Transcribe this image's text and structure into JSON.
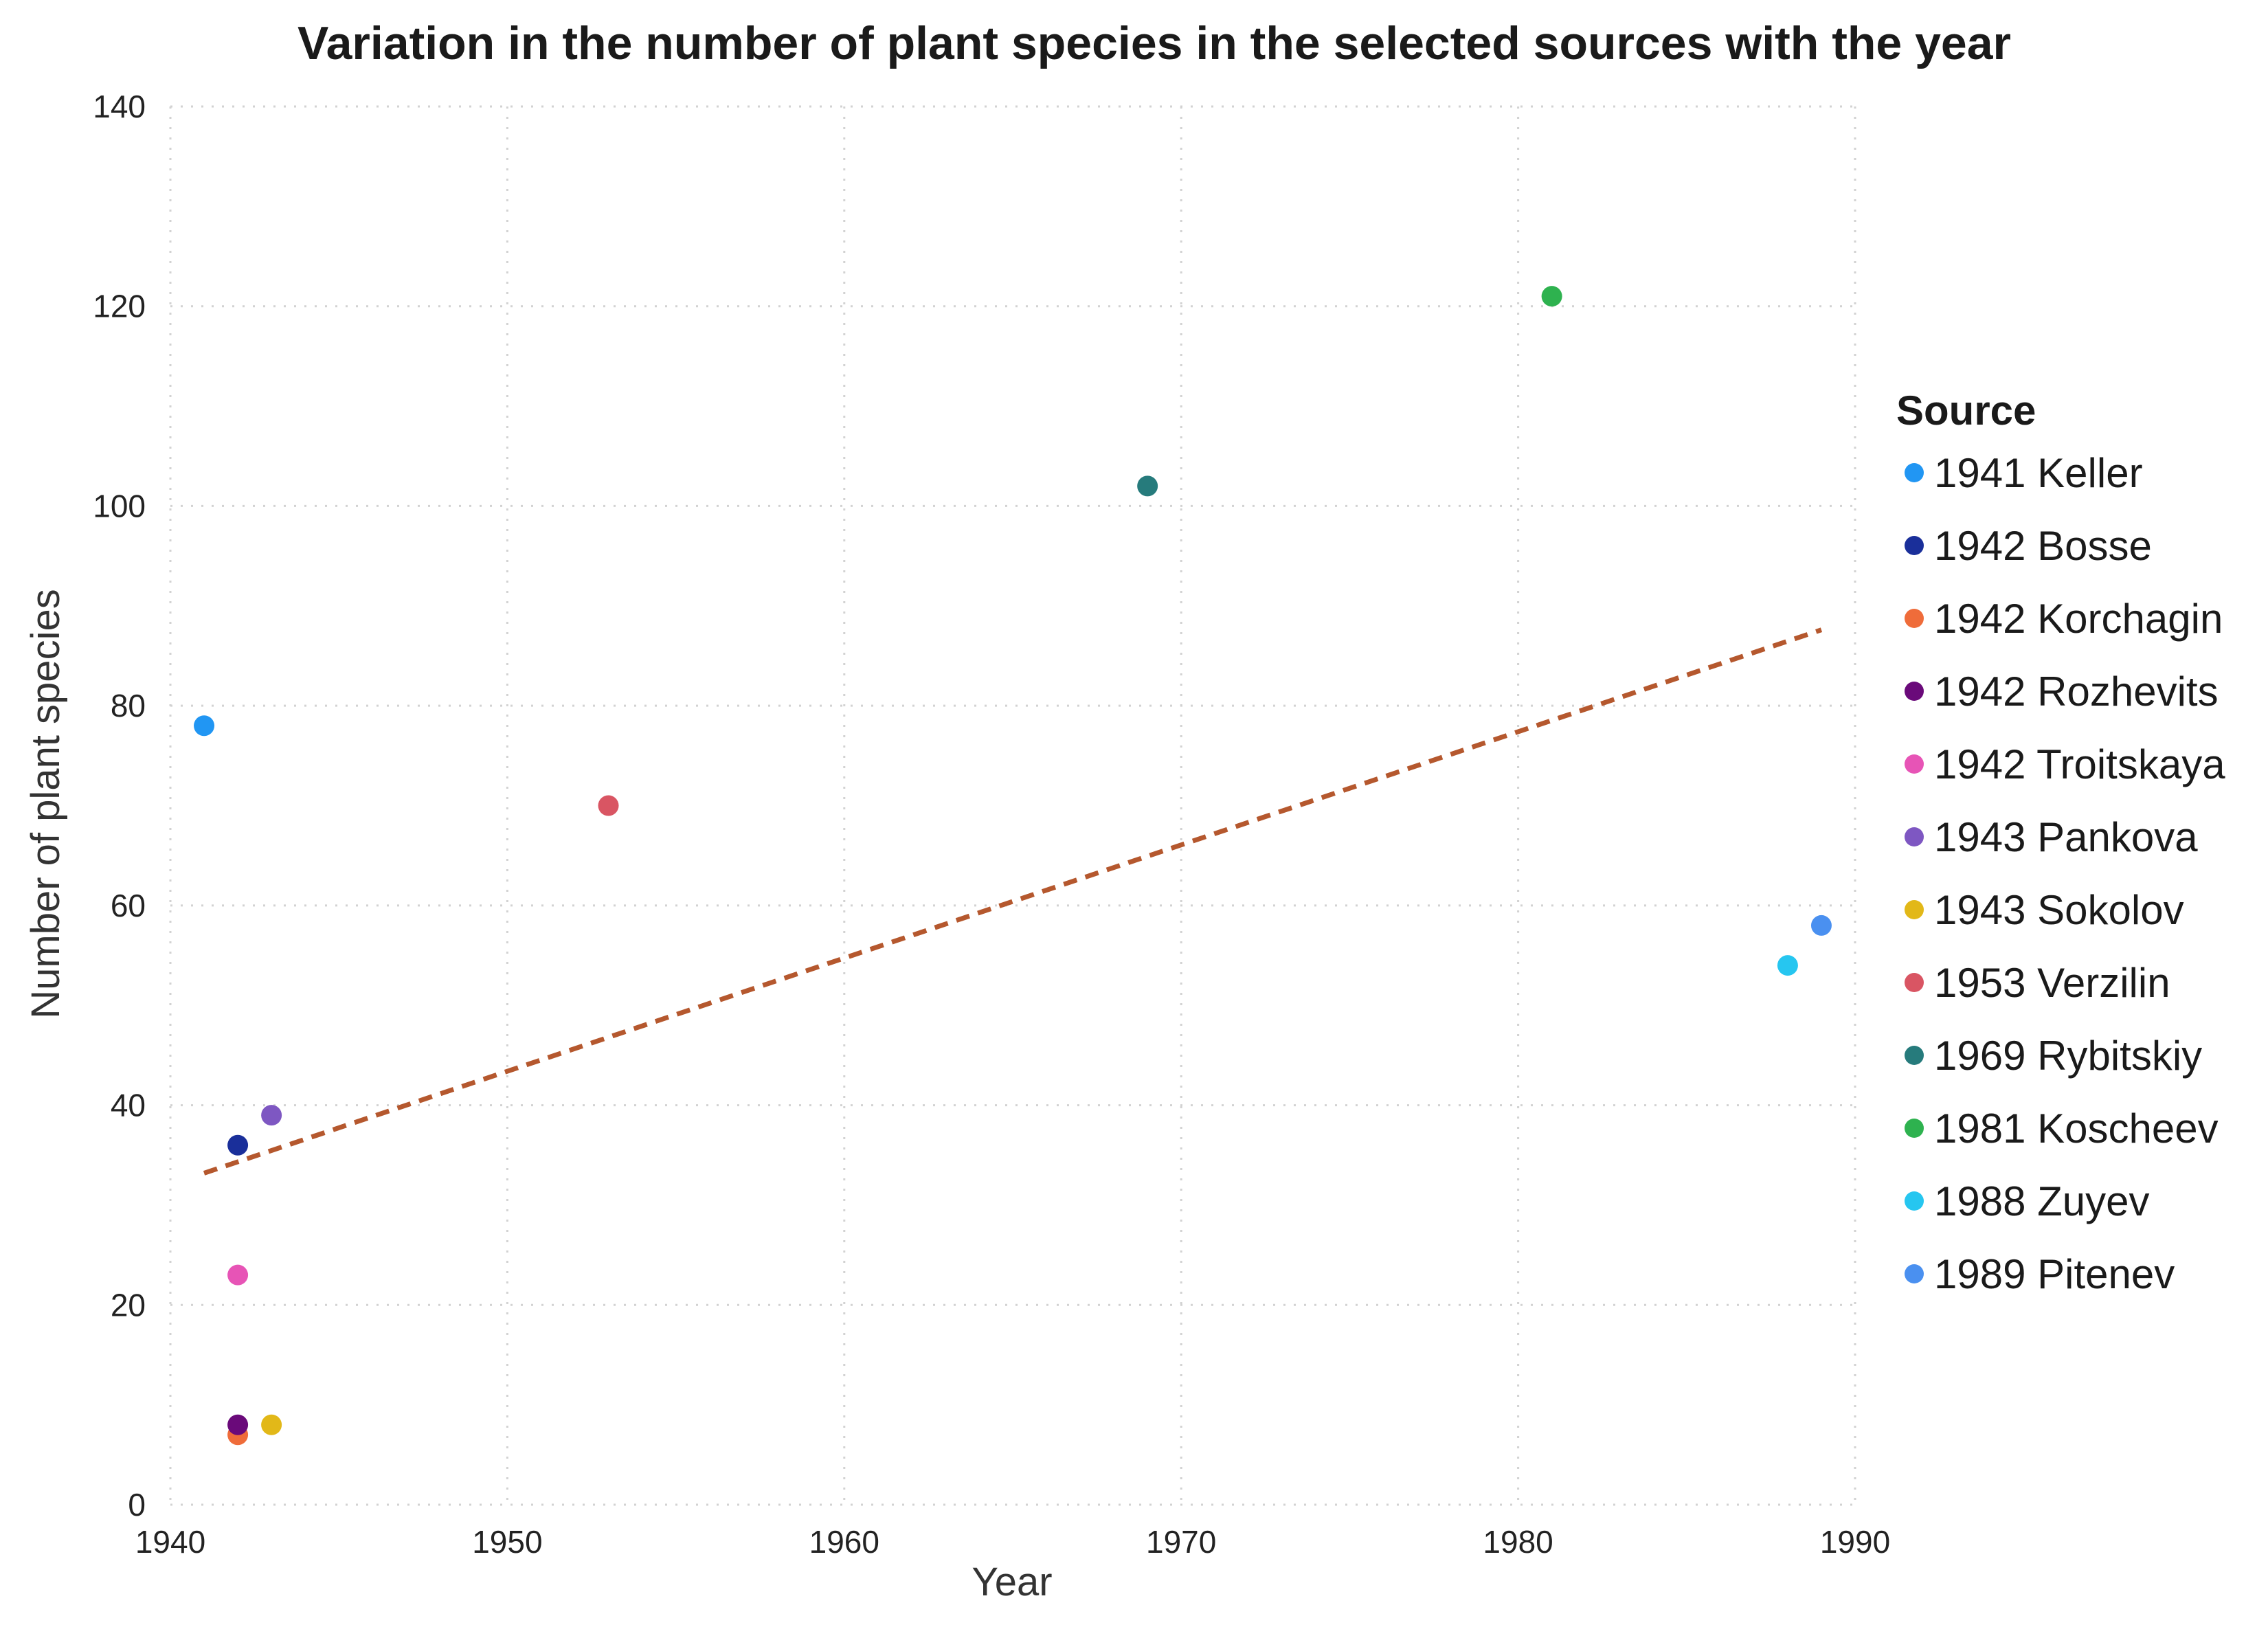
{
  "chart_data": {
    "type": "scatter",
    "title": "Variation in the number of plant species in the selected sources with the year",
    "xlabel": "Year",
    "ylabel": "Number of plant species",
    "xlim": [
      1940,
      1990
    ],
    "ylim": [
      0,
      140
    ],
    "x_ticks": [
      1940,
      1950,
      1960,
      1970,
      1980,
      1990
    ],
    "y_ticks": [
      0,
      20,
      40,
      60,
      80,
      100,
      120,
      140
    ],
    "grid": true,
    "legend": {
      "title": "Source",
      "placement": "right"
    },
    "series": [
      {
        "name": "1941 Keller",
        "color": "#2196f3",
        "x": 1941,
        "y": 78
      },
      {
        "name": "1942 Bosse",
        "color": "#1a2f9a",
        "x": 1942,
        "y": 36
      },
      {
        "name": "1942 Korchagin",
        "color": "#ef6c3a",
        "x": 1942,
        "y": 7
      },
      {
        "name": "1942 Rozhevits",
        "color": "#6a0a7a",
        "x": 1942,
        "y": 8
      },
      {
        "name": "1942 Troitskaya",
        "color": "#e754b6",
        "x": 1942,
        "y": 23
      },
      {
        "name": "1943 Pankova",
        "color": "#7e57c2",
        "x": 1943,
        "y": 39
      },
      {
        "name": "1943 Sokolov",
        "color": "#e2b818",
        "x": 1943,
        "y": 8
      },
      {
        "name": "1953 Verzilin",
        "color": "#d95563",
        "x": 1953,
        "y": 70
      },
      {
        "name": "1969 Rybitskiy",
        "color": "#267b7c",
        "x": 1969,
        "y": 102
      },
      {
        "name": "1981 Koscheev",
        "color": "#2eb24f",
        "x": 1981,
        "y": 121
      },
      {
        "name": "1988 Zuyev",
        "color": "#26c6f0",
        "x": 1988,
        "y": 54
      },
      {
        "name": "1989 Pitenev",
        "color": "#4a90f0",
        "x": 1989,
        "y": 58
      }
    ],
    "trendline": {
      "style": "dashed",
      "color": "#b5582e",
      "points": [
        {
          "x": 1941,
          "y": 33.2
        },
        {
          "x": 1989,
          "y": 87.6
        }
      ]
    }
  }
}
